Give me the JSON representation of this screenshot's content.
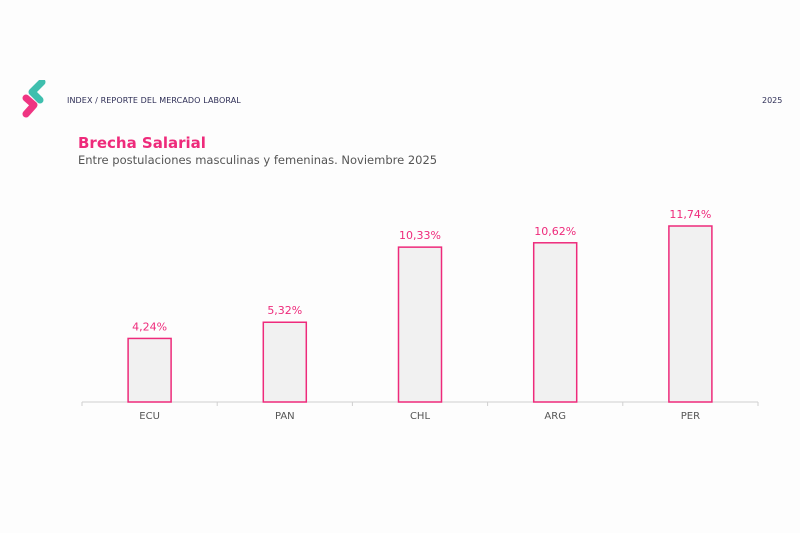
{
  "header": {
    "breadcrumb": "INDEX / REPORTE DEL MERCADO LABORAL",
    "year": "2025",
    "logo_colors": [
      "#3fbfae",
      "#ee2a7b"
    ]
  },
  "chart_data": {
    "type": "bar",
    "title": "Brecha Salarial",
    "subtitle": "Entre postulaciones masculinas y femeninas. Noviembre 2025",
    "categories": [
      "ECU",
      "PAN",
      "CHL",
      "ARG",
      "PER"
    ],
    "values": [
      4.24,
      5.32,
      10.33,
      10.62,
      11.74
    ],
    "data_labels": [
      "4,24%",
      "5,32%",
      "10,33%",
      "10,62%",
      "11,74%"
    ],
    "xlabel": "",
    "ylabel": "",
    "ylim": [
      0,
      11.74
    ],
    "grid": false,
    "legend": "none",
    "colors": {
      "bar_fill": "#f1f1f1",
      "bar_stroke": "#ee2a7b",
      "label": "#ee2a7b",
      "axis": "#d0d0d0"
    }
  }
}
